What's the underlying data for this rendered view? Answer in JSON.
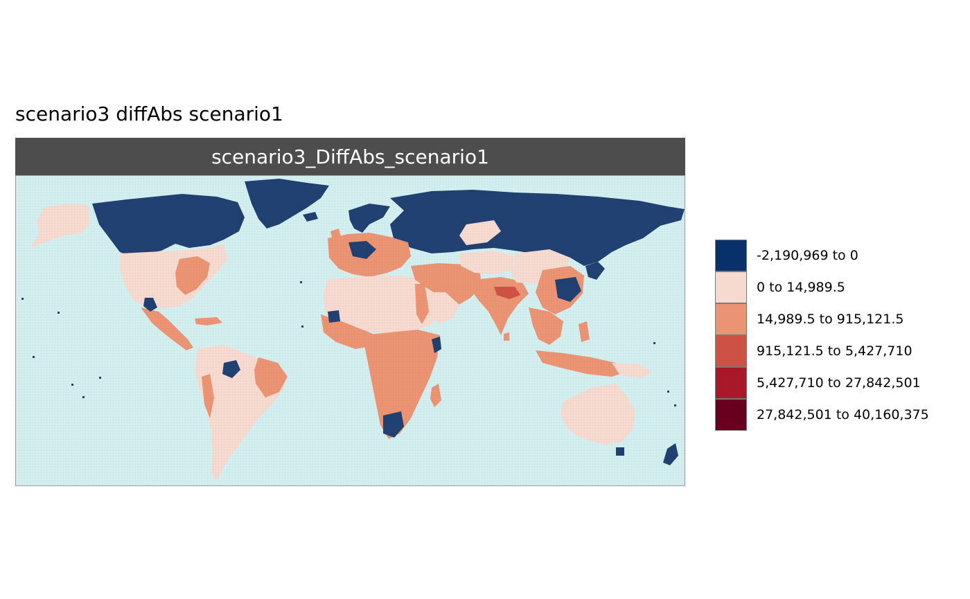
{
  "figure": {
    "title": "scenario3 diffAbs scenario1",
    "panel_label": "scenario3_DiffAbs_scenario1"
  },
  "colors": {
    "ocean": "#d2eeee",
    "strip": "#4d4d4d",
    "neg": "#08306b",
    "low": "#f7dacf",
    "mid": "#ea9473",
    "high": "#cd5245",
    "higher": "#a81829",
    "max": "#67001f"
  },
  "legend": {
    "items": [
      {
        "label": "-2,190,969 to 0",
        "color": "#08306b"
      },
      {
        "label": "0 to 14,989.5",
        "color": "#f7dacf"
      },
      {
        "label": "14,989.5 to 915,121.5",
        "color": "#ea9473"
      },
      {
        "label": "915,121.5 to 5,427,710",
        "color": "#cd5245"
      },
      {
        "label": "5,427,710 to 27,842,501",
        "color": "#a81829"
      },
      {
        "label": "27,842,501 to 40,160,375",
        "color": "#67001f"
      }
    ]
  }
}
